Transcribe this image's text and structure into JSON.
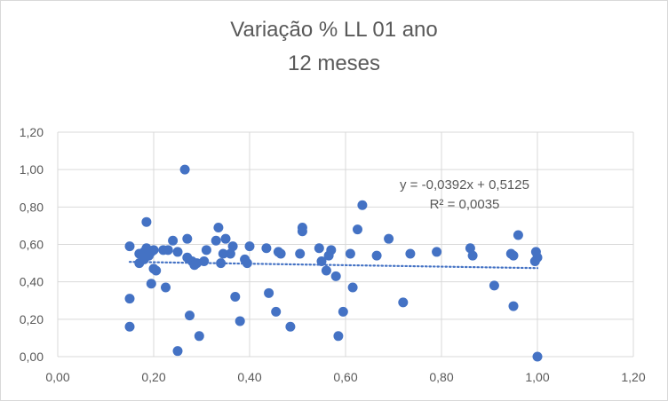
{
  "chart_data": {
    "type": "scatter",
    "title": "Variação % LL 01 ano",
    "subtitle": "12 meses",
    "xlabel": "",
    "ylabel": "",
    "xlim": [
      0,
      1.2
    ],
    "ylim": [
      0,
      1.2
    ],
    "x_ticks": [
      "0,00",
      "0,20",
      "0,40",
      "0,60",
      "0,80",
      "1,00",
      "1,20"
    ],
    "y_ticks": [
      "0,00",
      "0,20",
      "0,40",
      "0,60",
      "0,80",
      "1,00",
      "1,20"
    ],
    "grid": true,
    "legend": "none",
    "colors": {
      "points": "#4472c4",
      "trendline": "#4472c4",
      "grid": "#d9d9d9",
      "text": "#595959"
    },
    "trendline": {
      "type": "linear",
      "slope": -0.0392,
      "intercept": 0.5125,
      "equation_label": "y = -0,0392x + 0,5125",
      "r2_label": "R² = 0,0035"
    },
    "points": [
      {
        "x": 0.15,
        "y": 0.59
      },
      {
        "x": 0.15,
        "y": 0.31
      },
      {
        "x": 0.15,
        "y": 0.16
      },
      {
        "x": 0.17,
        "y": 0.5
      },
      {
        "x": 0.17,
        "y": 0.55
      },
      {
        "x": 0.18,
        "y": 0.52
      },
      {
        "x": 0.18,
        "y": 0.56
      },
      {
        "x": 0.185,
        "y": 0.58
      },
      {
        "x": 0.185,
        "y": 0.72
      },
      {
        "x": 0.19,
        "y": 0.54
      },
      {
        "x": 0.195,
        "y": 0.56
      },
      {
        "x": 0.195,
        "y": 0.39
      },
      {
        "x": 0.2,
        "y": 0.57
      },
      {
        "x": 0.2,
        "y": 0.47
      },
      {
        "x": 0.205,
        "y": 0.46
      },
      {
        "x": 0.22,
        "y": 0.57
      },
      {
        "x": 0.225,
        "y": 0.37
      },
      {
        "x": 0.23,
        "y": 0.57
      },
      {
        "x": 0.24,
        "y": 0.62
      },
      {
        "x": 0.25,
        "y": 0.56
      },
      {
        "x": 0.25,
        "y": 0.03
      },
      {
        "x": 0.265,
        "y": 1.0
      },
      {
        "x": 0.27,
        "y": 0.53
      },
      {
        "x": 0.27,
        "y": 0.63
      },
      {
        "x": 0.275,
        "y": 0.22
      },
      {
        "x": 0.28,
        "y": 0.51
      },
      {
        "x": 0.285,
        "y": 0.49
      },
      {
        "x": 0.29,
        "y": 0.5
      },
      {
        "x": 0.295,
        "y": 0.11
      },
      {
        "x": 0.305,
        "y": 0.51
      },
      {
        "x": 0.31,
        "y": 0.57
      },
      {
        "x": 0.33,
        "y": 0.62
      },
      {
        "x": 0.335,
        "y": 0.69
      },
      {
        "x": 0.34,
        "y": 0.5
      },
      {
        "x": 0.345,
        "y": 0.55
      },
      {
        "x": 0.35,
        "y": 0.63
      },
      {
        "x": 0.36,
        "y": 0.55
      },
      {
        "x": 0.365,
        "y": 0.59
      },
      {
        "x": 0.37,
        "y": 0.32
      },
      {
        "x": 0.38,
        "y": 0.19
      },
      {
        "x": 0.39,
        "y": 0.52
      },
      {
        "x": 0.395,
        "y": 0.5
      },
      {
        "x": 0.4,
        "y": 0.59
      },
      {
        "x": 0.435,
        "y": 0.58
      },
      {
        "x": 0.44,
        "y": 0.34
      },
      {
        "x": 0.455,
        "y": 0.24
      },
      {
        "x": 0.46,
        "y": 0.56
      },
      {
        "x": 0.465,
        "y": 0.55
      },
      {
        "x": 0.485,
        "y": 0.16
      },
      {
        "x": 0.505,
        "y": 0.55
      },
      {
        "x": 0.51,
        "y": 0.69
      },
      {
        "x": 0.51,
        "y": 0.67
      },
      {
        "x": 0.545,
        "y": 0.58
      },
      {
        "x": 0.55,
        "y": 0.51
      },
      {
        "x": 0.56,
        "y": 0.46
      },
      {
        "x": 0.565,
        "y": 0.54
      },
      {
        "x": 0.57,
        "y": 0.57
      },
      {
        "x": 0.58,
        "y": 0.43
      },
      {
        "x": 0.585,
        "y": 0.11
      },
      {
        "x": 0.595,
        "y": 0.24
      },
      {
        "x": 0.61,
        "y": 0.55
      },
      {
        "x": 0.615,
        "y": 0.37
      },
      {
        "x": 0.625,
        "y": 0.68
      },
      {
        "x": 0.635,
        "y": 0.81
      },
      {
        "x": 0.665,
        "y": 0.54
      },
      {
        "x": 0.69,
        "y": 0.63
      },
      {
        "x": 0.72,
        "y": 0.29
      },
      {
        "x": 0.735,
        "y": 0.55
      },
      {
        "x": 0.79,
        "y": 0.56
      },
      {
        "x": 0.86,
        "y": 0.58
      },
      {
        "x": 0.865,
        "y": 0.54
      },
      {
        "x": 0.91,
        "y": 0.38
      },
      {
        "x": 0.945,
        "y": 0.55
      },
      {
        "x": 0.95,
        "y": 0.27
      },
      {
        "x": 0.95,
        "y": 0.54
      },
      {
        "x": 0.96,
        "y": 0.65
      },
      {
        "x": 0.995,
        "y": 0.51
      },
      {
        "x": 0.997,
        "y": 0.56
      },
      {
        "x": 1.0,
        "y": 0.53
      },
      {
        "x": 1.0,
        "y": 0.0
      }
    ]
  }
}
